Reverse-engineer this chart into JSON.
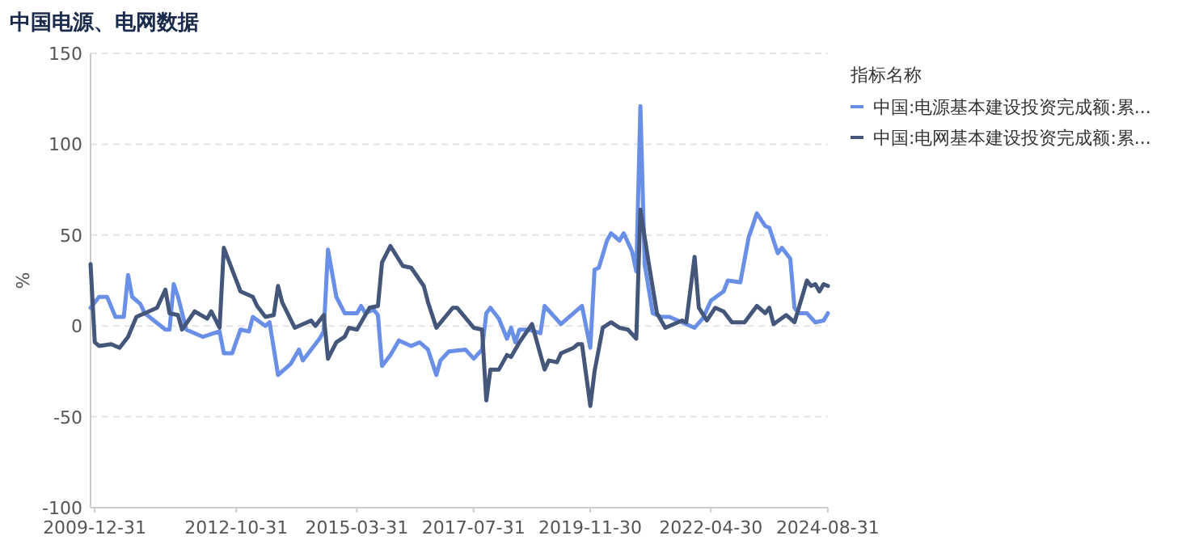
{
  "chart_data": {
    "type": "line",
    "title": "中国电源、电网数据",
    "ylabel": "%",
    "legend_title": "指标名称",
    "legend": "top right",
    "grid": "y",
    "xlim": [
      "2009-12",
      "2024-09"
    ],
    "ylim": [
      -100,
      150
    ],
    "yticks": [
      -100,
      -50,
      0,
      50,
      100,
      150
    ],
    "xticks": [
      "2009-12-31",
      "2012-10-31",
      "2015-03-31",
      "2017-07-31",
      "2019-11-30",
      "2022-04-30",
      "2024-08-31"
    ],
    "series": [
      {
        "name": "中国:电源基本建设投资完成额:累...",
        "color": "#6a8fe6",
        "x": [
          "2009-12",
          "2010-02",
          "2010-04",
          "2010-06",
          "2010-08",
          "2010-09",
          "2010-10",
          "2010-12",
          "2011-01",
          "2011-06",
          "2011-07",
          "2011-08",
          "2011-09",
          "2011-11",
          "2012-03",
          "2012-07",
          "2012-08",
          "2012-10",
          "2012-12",
          "2013-02",
          "2013-03",
          "2013-06",
          "2013-07",
          "2013-09",
          "2013-12",
          "2014-02",
          "2014-03",
          "2014-07",
          "2014-08",
          "2014-09",
          "2014-11",
          "2015-01",
          "2015-04",
          "2015-05",
          "2015-06",
          "2015-08",
          "2015-09",
          "2015-10",
          "2015-12",
          "2016-02",
          "2016-05",
          "2016-07",
          "2016-09",
          "2016-11",
          "2016-12",
          "2017-02",
          "2017-06",
          "2017-08",
          "2017-10",
          "2017-11",
          "2017-12",
          "2018-02",
          "2018-04",
          "2018-05",
          "2018-06",
          "2018-07",
          "2018-09",
          "2018-12",
          "2019-01",
          "2019-05",
          "2019-07",
          "2019-10",
          "2019-12",
          "2020-01",
          "2020-02",
          "2020-04",
          "2020-05",
          "2020-07",
          "2020-08",
          "2020-10",
          "2020-11",
          "2020-12",
          "2021-01",
          "2021-03",
          "2021-05",
          "2021-07",
          "2021-09",
          "2022-01",
          "2022-03",
          "2022-05",
          "2022-08",
          "2022-09",
          "2022-12",
          "2023-02",
          "2023-03",
          "2023-04",
          "2023-06",
          "2023-07",
          "2023-09",
          "2023-10",
          "2023-12",
          "2024-01",
          "2024-02",
          "2024-04",
          "2024-06",
          "2024-08",
          "2024-09"
        ],
        "values": [
          10,
          16,
          16,
          5,
          5,
          28,
          16,
          12,
          7,
          -2,
          -2,
          23,
          16,
          -2,
          -6,
          -3,
          -15,
          -15,
          -2,
          -3,
          5,
          0,
          2,
          -27,
          -21,
          -13,
          -19,
          -7,
          -3,
          42,
          16,
          7,
          7,
          11,
          7,
          9,
          6,
          -22,
          -16,
          -8,
          -11,
          -9,
          -13,
          -27,
          -19,
          -14,
          -13,
          -18,
          -13,
          7,
          10,
          4,
          -7,
          -1,
          -9,
          -2,
          -2,
          -4,
          11,
          1,
          5,
          11,
          -12,
          31,
          32,
          47,
          51,
          47,
          51,
          41,
          30,
          121,
          34,
          7,
          5,
          5,
          3,
          -1,
          4,
          14,
          19,
          25,
          24,
          49,
          55,
          62,
          55,
          54,
          40,
          43,
          37,
          10,
          7,
          7,
          2,
          3,
          7
        ]
      },
      {
        "name": "中国:电网基本建设投资完成额:累...",
        "color": "#44577a",
        "x": [
          "2009-12",
          "2010-01",
          "2010-02",
          "2010-05",
          "2010-07",
          "2010-09",
          "2010-11",
          "2011-01",
          "2011-04",
          "2011-06",
          "2011-07",
          "2011-09",
          "2011-10",
          "2012-01",
          "2012-04",
          "2012-05",
          "2012-07",
          "2012-08",
          "2012-10",
          "2012-12",
          "2013-03",
          "2013-04",
          "2013-06",
          "2013-08",
          "2013-09",
          "2013-10",
          "2014-01",
          "2014-05",
          "2014-06",
          "2014-08",
          "2014-09",
          "2014-11",
          "2015-01",
          "2015-02",
          "2015-04",
          "2015-07",
          "2015-09",
          "2015-10",
          "2015-12",
          "2016-03",
          "2016-05",
          "2016-08",
          "2016-09",
          "2016-11",
          "2017-03",
          "2017-04",
          "2017-08",
          "2017-10",
          "2017-11",
          "2017-12",
          "2018-02",
          "2018-04",
          "2018-05",
          "2018-07",
          "2018-10",
          "2019-01",
          "2019-02",
          "2019-04",
          "2019-05",
          "2019-08",
          "2019-09",
          "2019-10",
          "2019-12",
          "2020-01",
          "2020-03",
          "2020-05",
          "2020-07",
          "2020-09",
          "2020-11",
          "2020-12",
          "2021-02",
          "2021-04",
          "2021-06",
          "2021-08",
          "2021-10",
          "2021-11",
          "2022-01",
          "2022-02",
          "2022-04",
          "2022-06",
          "2022-08",
          "2022-10",
          "2023-01",
          "2023-04",
          "2023-06",
          "2023-07",
          "2023-08",
          "2023-11",
          "2024-01",
          "2024-04",
          "2024-05",
          "2024-06",
          "2024-07",
          "2024-08",
          "2024-09"
        ],
        "values": [
          34,
          -9,
          -11,
          -10,
          -12,
          -6,
          5,
          7,
          10,
          20,
          7,
          6,
          -2,
          8,
          4,
          8,
          -1,
          43,
          31,
          19,
          16,
          11,
          5,
          6,
          22,
          13,
          -1,
          3,
          0,
          6,
          -18,
          -9,
          -6,
          -1,
          -2,
          10,
          11,
          35,
          44,
          33,
          32,
          22,
          13,
          -1,
          10,
          10,
          -1,
          -2,
          -41,
          -24,
          -24,
          -16,
          -17,
          -9,
          1,
          -24,
          -19,
          -20,
          -15,
          -12,
          -10,
          -10,
          -44,
          -25,
          -1,
          2,
          -1,
          -2,
          -7,
          64,
          34,
          7,
          -1,
          1,
          3,
          2,
          38,
          10,
          3,
          10,
          8,
          2,
          2,
          11,
          7,
          10,
          1,
          6,
          2,
          25,
          22,
          23,
          19,
          23,
          22
        ]
      }
    ]
  }
}
